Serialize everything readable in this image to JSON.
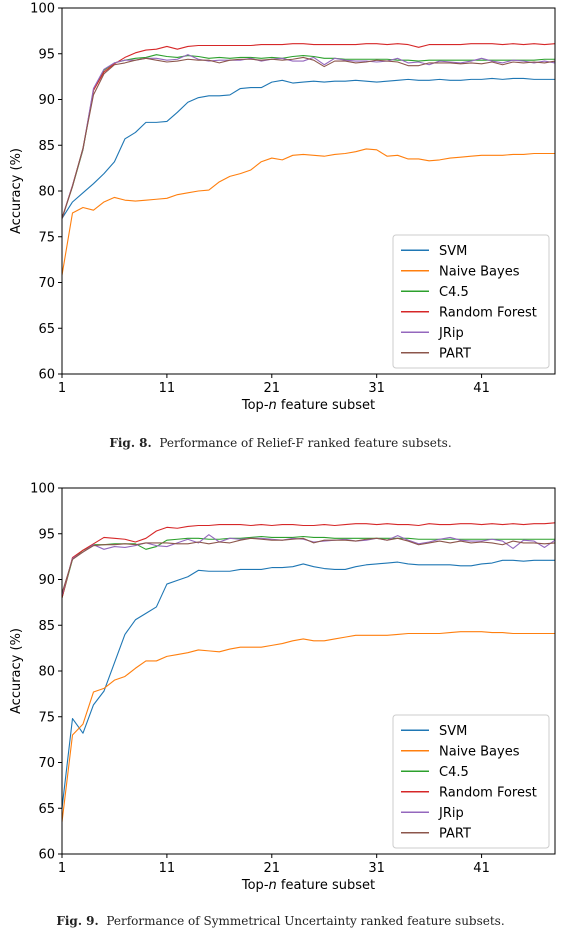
{
  "figures": [
    {
      "caption_num": "Fig. 8.",
      "caption_text": "Performance of Relief-F ranked feature subsets."
    },
    {
      "caption_num": "Fig. 9.",
      "caption_text": "Performance of Symmetrical Uncertainty ranked feature subsets."
    }
  ],
  "chart_data": [
    {
      "type": "line",
      "xlabel_pre": "Top-",
      "xlabel_em": "n",
      "xlabel_post": " feature subset",
      "ylabel": "Accuracy (%)",
      "xlim": [
        1,
        48
      ],
      "ylim": [
        60,
        100
      ],
      "xticks": [
        1,
        11,
        21,
        31,
        41
      ],
      "yticks": [
        60,
        65,
        70,
        75,
        80,
        85,
        90,
        95,
        100
      ],
      "legend_position": "lower-right",
      "series": [
        {
          "name": "SVM",
          "color": "#1f77b4",
          "x_start": 1,
          "values": [
            77.0,
            78.8,
            79.8,
            80.8,
            81.9,
            83.2,
            85.7,
            86.4,
            87.5,
            87.5,
            87.6,
            88.6,
            89.7,
            90.2,
            90.4,
            90.4,
            90.5,
            91.2,
            91.3,
            91.3,
            91.9,
            92.1,
            91.8,
            91.9,
            92.0,
            91.9,
            92.0,
            92.0,
            92.1,
            92.0,
            91.9,
            92.0,
            92.1,
            92.2,
            92.1,
            92.1,
            92.2,
            92.1,
            92.1,
            92.2,
            92.2,
            92.3,
            92.2,
            92.3,
            92.3,
            92.2,
            92.2,
            92.2
          ]
        },
        {
          "name": "Naive Bayes",
          "color": "#ff7f0e",
          "x_start": 1,
          "values": [
            70.8,
            77.6,
            78.2,
            77.9,
            78.8,
            79.3,
            79.0,
            78.9,
            79.0,
            79.1,
            79.2,
            79.6,
            79.8,
            80.0,
            80.1,
            81.0,
            81.6,
            81.9,
            82.3,
            83.2,
            83.6,
            83.4,
            83.9,
            84.0,
            83.9,
            83.8,
            84.0,
            84.1,
            84.3,
            84.6,
            84.5,
            83.8,
            83.9,
            83.5,
            83.5,
            83.3,
            83.4,
            83.6,
            83.7,
            83.8,
            83.9,
            83.9,
            83.9,
            84.0,
            84.0,
            84.1,
            84.1,
            84.1
          ]
        },
        {
          "name": "C4.5",
          "color": "#2ca02c",
          "x_start": 1,
          "values": [
            77.0,
            80.5,
            84.5,
            91.0,
            93.2,
            94.0,
            94.3,
            94.5,
            94.6,
            94.9,
            94.7,
            94.6,
            94.8,
            94.7,
            94.5,
            94.6,
            94.5,
            94.6,
            94.6,
            94.5,
            94.6,
            94.5,
            94.7,
            94.8,
            94.7,
            94.5,
            94.5,
            94.4,
            94.4,
            94.4,
            94.4,
            94.4,
            94.3,
            94.3,
            94.2,
            94.3,
            94.3,
            94.3,
            94.3,
            94.3,
            94.3,
            94.3,
            94.3,
            94.3,
            94.3,
            94.3,
            94.4,
            94.4
          ]
        },
        {
          "name": "Random Forest",
          "color": "#d62728",
          "x_start": 1,
          "values": [
            77.0,
            80.6,
            84.6,
            91.0,
            93.0,
            93.9,
            94.6,
            95.1,
            95.4,
            95.5,
            95.8,
            95.5,
            95.8,
            95.9,
            95.9,
            95.9,
            95.9,
            95.9,
            95.9,
            96.0,
            96.0,
            96.0,
            96.1,
            96.1,
            96.0,
            96.0,
            96.0,
            96.0,
            96.0,
            96.1,
            96.1,
            96.0,
            96.1,
            96.0,
            95.7,
            96.0,
            96.0,
            96.0,
            96.0,
            96.1,
            96.1,
            96.1,
            96.0,
            96.1,
            96.0,
            96.1,
            96.0,
            96.1
          ]
        },
        {
          "name": "JRip",
          "color": "#9467bd",
          "x_start": 1,
          "values": [
            77.0,
            80.6,
            84.6,
            91.2,
            93.3,
            94.0,
            94.3,
            94.3,
            94.5,
            94.5,
            94.3,
            94.4,
            94.9,
            94.4,
            94.2,
            94.3,
            94.3,
            94.3,
            94.5,
            94.2,
            94.4,
            94.5,
            94.2,
            94.2,
            94.6,
            93.8,
            94.5,
            94.3,
            94.2,
            94.2,
            94.1,
            94.2,
            94.5,
            94.0,
            94.1,
            93.8,
            94.2,
            94.1,
            94.0,
            94.2,
            94.5,
            94.2,
            94.0,
            94.3,
            94.2,
            94.0,
            94.2,
            94.0
          ]
        },
        {
          "name": "PART",
          "color": "#8c564b",
          "x_start": 1,
          "values": [
            77.0,
            80.5,
            84.7,
            90.5,
            92.8,
            93.8,
            94.0,
            94.3,
            94.5,
            94.3,
            94.1,
            94.2,
            94.4,
            94.3,
            94.3,
            94.0,
            94.3,
            94.4,
            94.4,
            94.3,
            94.4,
            94.3,
            94.4,
            94.6,
            94.3,
            93.6,
            94.2,
            94.2,
            94.0,
            94.1,
            94.3,
            94.2,
            94.1,
            93.7,
            93.7,
            94.0,
            94.0,
            94.0,
            93.9,
            94.0,
            93.9,
            94.1,
            93.8,
            94.1,
            94.0,
            94.1,
            94.0,
            94.2
          ]
        }
      ]
    },
    {
      "type": "line",
      "xlabel_pre": "Top-",
      "xlabel_em": "n",
      "xlabel_post": " feature subset",
      "ylabel": "Accuracy (%)",
      "xlim": [
        1,
        48
      ],
      "ylim": [
        60,
        100
      ],
      "xticks": [
        1,
        11,
        21,
        31,
        41
      ],
      "yticks": [
        60,
        65,
        70,
        75,
        80,
        85,
        90,
        95,
        100
      ],
      "legend_position": "lower-right",
      "series": [
        {
          "name": "SVM",
          "color": "#1f77b4",
          "x_start": 1,
          "values": [
            65.0,
            74.8,
            73.2,
            76.3,
            77.8,
            80.9,
            84.0,
            85.6,
            86.3,
            87.0,
            89.5,
            89.9,
            90.3,
            91.0,
            90.9,
            90.9,
            90.9,
            91.1,
            91.1,
            91.1,
            91.3,
            91.3,
            91.4,
            91.7,
            91.4,
            91.2,
            91.1,
            91.1,
            91.4,
            91.6,
            91.7,
            91.8,
            91.9,
            91.7,
            91.6,
            91.6,
            91.6,
            91.6,
            91.5,
            91.5,
            91.7,
            91.8,
            92.1,
            92.1,
            92.0,
            92.1,
            92.1,
            92.1
          ]
        },
        {
          "name": "Naive Bayes",
          "color": "#ff7f0e",
          "x_start": 1,
          "values": [
            63.5,
            73.0,
            74.2,
            77.7,
            78.1,
            79.0,
            79.4,
            80.3,
            81.1,
            81.1,
            81.6,
            81.8,
            82.0,
            82.3,
            82.2,
            82.1,
            82.4,
            82.6,
            82.6,
            82.6,
            82.8,
            83.0,
            83.3,
            83.5,
            83.3,
            83.3,
            83.5,
            83.7,
            83.9,
            83.9,
            83.9,
            83.9,
            84.0,
            84.1,
            84.1,
            84.1,
            84.1,
            84.2,
            84.3,
            84.3,
            84.3,
            84.2,
            84.2,
            84.1,
            84.1,
            84.1,
            84.1,
            84.1
          ]
        },
        {
          "name": "C4.5",
          "color": "#2ca02c",
          "x_start": 1,
          "values": [
            88.0,
            92.2,
            93.2,
            93.8,
            93.8,
            93.9,
            93.9,
            93.9,
            93.3,
            93.6,
            94.3,
            94.4,
            94.5,
            94.5,
            94.4,
            94.4,
            94.5,
            94.5,
            94.6,
            94.7,
            94.6,
            94.6,
            94.6,
            94.7,
            94.6,
            94.6,
            94.5,
            94.5,
            94.5,
            94.5,
            94.5,
            94.5,
            94.5,
            94.5,
            94.4,
            94.4,
            94.4,
            94.4,
            94.4,
            94.4,
            94.4,
            94.4,
            94.4,
            94.4,
            94.4,
            94.4,
            94.4,
            94.4
          ]
        },
        {
          "name": "Random Forest",
          "color": "#d62728",
          "x_start": 1,
          "values": [
            88.0,
            92.4,
            93.2,
            93.9,
            94.6,
            94.5,
            94.4,
            94.1,
            94.5,
            95.3,
            95.7,
            95.6,
            95.8,
            95.9,
            95.9,
            96.0,
            96.0,
            96.0,
            95.9,
            96.0,
            95.9,
            96.0,
            96.0,
            95.9,
            95.9,
            96.0,
            95.9,
            96.0,
            96.1,
            96.1,
            96.0,
            96.1,
            96.0,
            96.0,
            95.9,
            96.1,
            96.0,
            96.0,
            96.1,
            96.1,
            96.0,
            96.1,
            96.0,
            96.1,
            96.0,
            96.1,
            96.1,
            96.2
          ]
        },
        {
          "name": "JRip",
          "color": "#9467bd",
          "x_start": 1,
          "values": [
            88.3,
            92.3,
            93.0,
            93.8,
            93.3,
            93.6,
            93.5,
            93.7,
            94.0,
            93.7,
            93.6,
            94.0,
            94.4,
            94.0,
            94.9,
            94.1,
            94.5,
            94.4,
            94.5,
            94.5,
            94.4,
            94.3,
            94.5,
            94.4,
            94.1,
            94.2,
            94.3,
            94.4,
            94.2,
            94.3,
            94.5,
            94.3,
            94.8,
            94.3,
            93.9,
            94.1,
            94.4,
            94.6,
            94.3,
            94.2,
            94.2,
            94.4,
            94.2,
            93.4,
            94.3,
            94.2,
            93.5,
            94.3
          ]
        },
        {
          "name": "PART",
          "color": "#8c564b",
          "x_start": 1,
          "values": [
            88.5,
            92.2,
            93.0,
            93.7,
            93.8,
            93.8,
            93.9,
            93.8,
            94.0,
            94.0,
            94.0,
            93.9,
            93.9,
            94.1,
            93.9,
            94.1,
            94.0,
            94.3,
            94.5,
            94.4,
            94.3,
            94.3,
            94.4,
            94.5,
            94.0,
            94.3,
            94.3,
            94.3,
            94.2,
            94.4,
            94.5,
            94.3,
            94.5,
            94.2,
            93.8,
            94.0,
            94.2,
            94.0,
            94.2,
            94.0,
            94.1,
            94.0,
            93.8,
            94.2,
            94.0,
            94.0,
            93.9,
            94.0
          ]
        }
      ]
    }
  ]
}
